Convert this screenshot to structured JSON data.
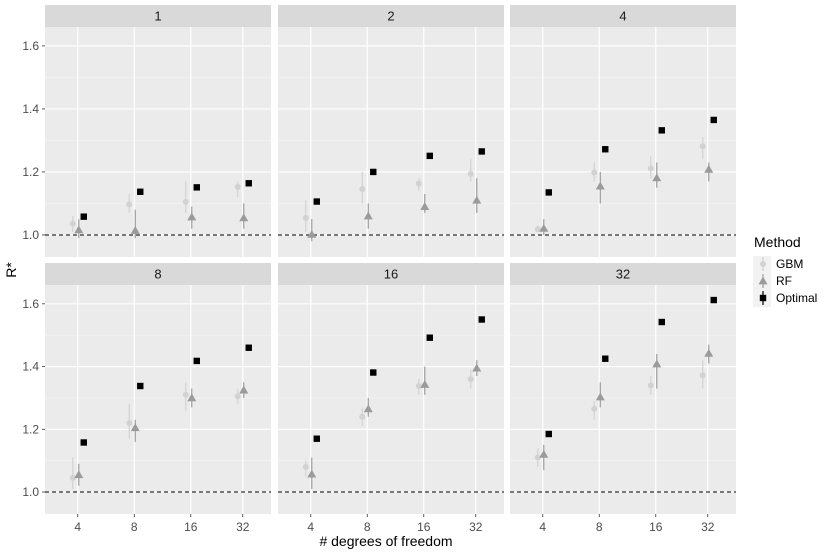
{
  "chart_data": {
    "type": "scatter",
    "xlabel": "# degrees of freedom",
    "ylabel": "R*",
    "x_categories": [
      "4",
      "8",
      "16",
      "32"
    ],
    "ylim": [
      0.93,
      1.66
    ],
    "yticks": [
      "1.0",
      "1.2",
      "1.4",
      "1.6"
    ],
    "reference_line": 1.0,
    "grid": true,
    "legend": {
      "title": "Method",
      "placement": "right",
      "entries": [
        {
          "label": "GBM",
          "shape": "circle",
          "color": "#d2d2d2"
        },
        {
          "label": "RF",
          "shape": "triangle",
          "color": "#9b9b9b"
        },
        {
          "label": "Optimal",
          "shape": "square",
          "color": "#000000"
        }
      ]
    },
    "panels": [
      {
        "strip": "1",
        "series": [
          {
            "name": "GBM",
            "values": [
              1.035,
              1.097,
              1.105,
              1.152
            ],
            "lower": [
              1.01,
              1.07,
              1.07,
              1.12
            ],
            "upper": [
              1.06,
              1.13,
              1.17,
              1.17
            ]
          },
          {
            "name": "RF",
            "values": [
              1.016,
              1.014,
              1.057,
              1.054
            ],
            "lower": [
              0.99,
              0.99,
              1.02,
              1.02
            ],
            "upper": [
              1.05,
              1.08,
              1.09,
              1.1
            ]
          },
          {
            "name": "Optimal",
            "values": [
              1.058,
              1.137,
              1.151,
              1.164
            ]
          }
        ]
      },
      {
        "strip": "2",
        "series": [
          {
            "name": "GBM",
            "values": [
              1.054,
              1.146,
              1.163,
              1.194
            ],
            "lower": [
              1.01,
              1.1,
              1.14,
              1.17
            ],
            "upper": [
              1.11,
              1.2,
              1.18,
              1.24
            ]
          },
          {
            "name": "RF",
            "values": [
              1.002,
              1.06,
              1.09,
              1.11
            ],
            "lower": [
              0.98,
              1.02,
              1.07,
              1.07
            ],
            "upper": [
              1.05,
              1.1,
              1.13,
              1.18
            ]
          },
          {
            "name": "Optimal",
            "values": [
              1.106,
              1.2,
              1.251,
              1.265
            ]
          }
        ]
      },
      {
        "strip": "4",
        "series": [
          {
            "name": "GBM",
            "values": [
              1.018,
              1.198,
              1.211,
              1.282
            ],
            "lower": [
              1.01,
              1.17,
              1.18,
              1.24
            ],
            "upper": [
              1.03,
              1.23,
              1.25,
              1.31
            ]
          },
          {
            "name": "RF",
            "values": [
              1.021,
              1.155,
              1.181,
              1.208
            ],
            "lower": [
              1.0,
              1.1,
              1.15,
              1.17
            ],
            "upper": [
              1.05,
              1.2,
              1.23,
              1.23
            ]
          },
          {
            "name": "Optimal",
            "values": [
              1.135,
              1.272,
              1.332,
              1.365
            ]
          }
        ]
      },
      {
        "strip": "8",
        "series": [
          {
            "name": "GBM",
            "values": [
              1.045,
              1.22,
              1.31,
              1.305
            ],
            "lower": [
              1.01,
              1.17,
              1.26,
              1.28
            ],
            "upper": [
              1.11,
              1.28,
              1.35,
              1.33
            ]
          },
          {
            "name": "RF",
            "values": [
              1.055,
              1.205,
              1.3,
              1.325
            ],
            "lower": [
              1.02,
              1.16,
              1.27,
              1.3
            ],
            "upper": [
              1.09,
              1.23,
              1.33,
              1.35
            ]
          },
          {
            "name": "Optimal",
            "values": [
              1.158,
              1.338,
              1.418,
              1.46
            ]
          }
        ]
      },
      {
        "strip": "16",
        "series": [
          {
            "name": "GBM",
            "values": [
              1.08,
              1.24,
              1.338,
              1.36
            ],
            "lower": [
              1.05,
              1.21,
              1.31,
              1.33
            ],
            "upper": [
              1.1,
              1.27,
              1.36,
              1.39
            ]
          },
          {
            "name": "RF",
            "values": [
              1.057,
              1.265,
              1.343,
              1.395
            ],
            "lower": [
              1.01,
              1.24,
              1.31,
              1.37
            ],
            "upper": [
              1.11,
              1.3,
              1.4,
              1.42
            ]
          },
          {
            "name": "Optimal",
            "values": [
              1.17,
              1.381,
              1.492,
              1.55
            ]
          }
        ]
      },
      {
        "strip": "32",
        "series": [
          {
            "name": "GBM",
            "values": [
              1.11,
              1.265,
              1.34,
              1.372
            ],
            "lower": [
              1.08,
              1.23,
              1.31,
              1.33
            ],
            "upper": [
              1.14,
              1.29,
              1.37,
              1.42
            ]
          },
          {
            "name": "RF",
            "values": [
              1.12,
              1.303,
              1.408,
              1.442
            ],
            "lower": [
              1.07,
              1.27,
              1.33,
              1.41
            ],
            "upper": [
              1.15,
              1.35,
              1.44,
              1.47
            ]
          },
          {
            "name": "Optimal",
            "values": [
              1.185,
              1.425,
              1.542,
              1.612
            ]
          }
        ]
      }
    ]
  }
}
